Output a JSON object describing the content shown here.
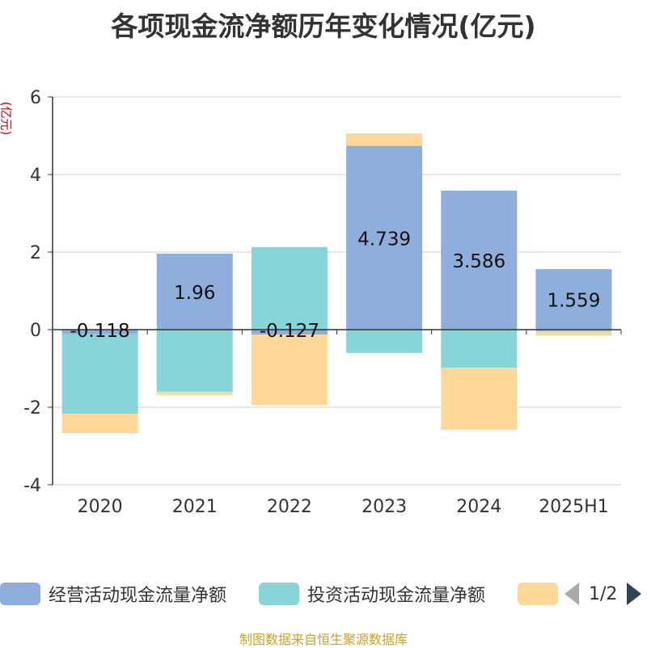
{
  "title": "各项现金流净额历年变化情况(亿元)",
  "ylabel_unit": "(亿元)",
  "source": "制图数据来自恒生聚源数据库",
  "legend": {
    "page_indicator": "1/2"
  },
  "colors": {
    "operating": "#8eaedb",
    "investing": "#86d5d8",
    "financing": "#ffd898",
    "grid": "#cccccc",
    "axis": "#333333",
    "ylabel": "#cc0000"
  },
  "chart_data": {
    "type": "bar",
    "stacked": true,
    "categories": [
      "2020",
      "2021",
      "2022",
      "2023",
      "2024",
      "2025H1"
    ],
    "ylim": [
      -4,
      6
    ],
    "yticks": [
      -4,
      -2,
      0,
      2,
      4,
      6
    ],
    "grid": true,
    "series": [
      {
        "name": "经营活动现金流量净额",
        "color_key": "operating",
        "values": [
          -0.118,
          1.96,
          -0.127,
          4.739,
          3.586,
          1.559
        ],
        "labels": [
          "-0.118",
          "1.96",
          "-0.127",
          "4.739",
          "3.586",
          "1.559"
        ]
      },
      {
        "name": "投资活动现金流量净额",
        "color_key": "investing",
        "values": [
          -2.05,
          -1.6,
          2.13,
          -0.6,
          -0.98,
          -0.05
        ]
      },
      {
        "name": "",
        "color_key": "financing",
        "values": [
          -0.5,
          -0.08,
          -1.82,
          0.32,
          -1.6,
          -0.1
        ]
      }
    ]
  }
}
